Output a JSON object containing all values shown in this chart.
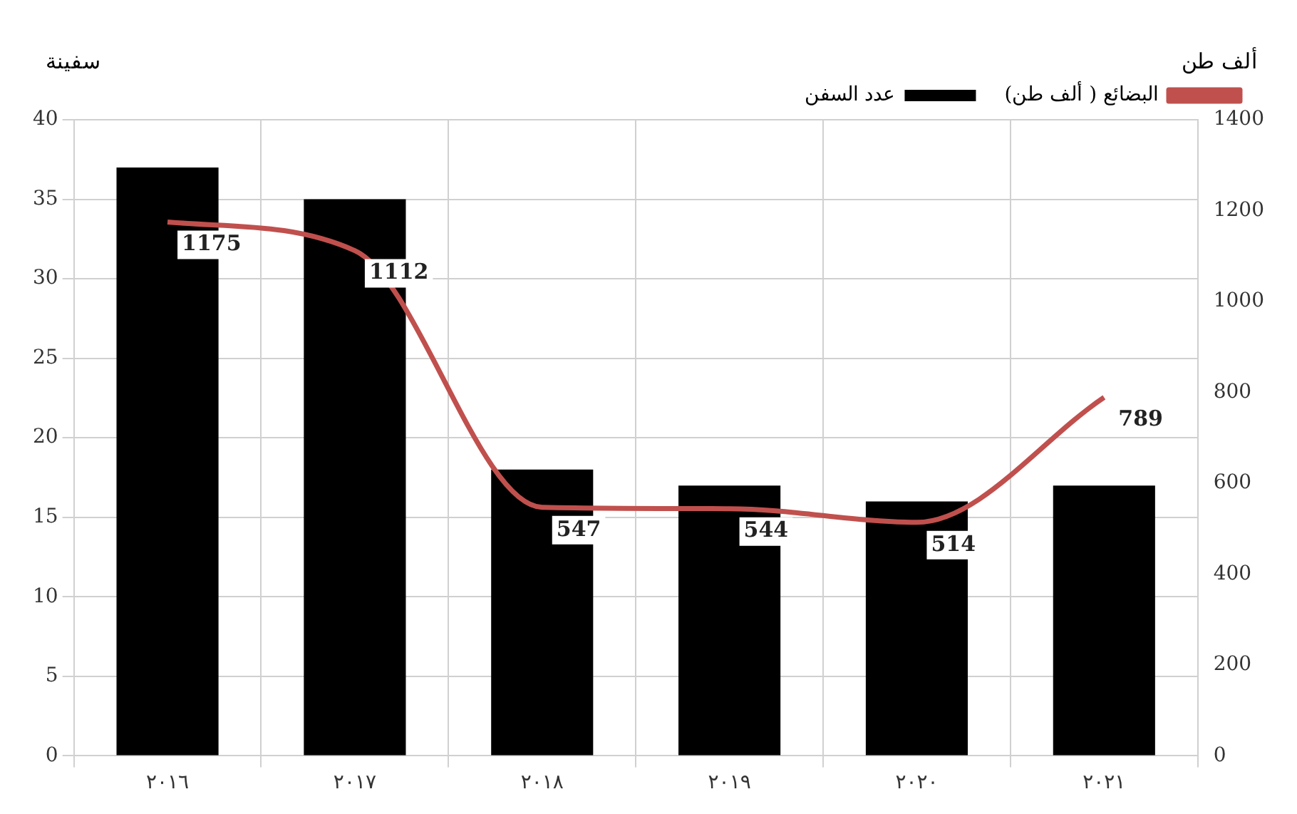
{
  "chart_data": {
    "type": "bar",
    "ylabel": "سفينة",
    "y2label": "ألف طن",
    "categories": [
      "٢٠١٦",
      "٢٠١٧",
      "٢٠١٨",
      "٢٠١٩",
      "٢٠٢٠",
      "٢٠٢١"
    ],
    "series": [
      {
        "name": "عدد السفن",
        "color": "#000000",
        "values": [
          37,
          35,
          18,
          17,
          16,
          17
        ]
      },
      {
        "name": "البضائع ( ألف طن)",
        "type": "line",
        "axis": "y2",
        "color": "#c0504d",
        "values": [
          1175,
          1112,
          547,
          544,
          514,
          789
        ],
        "data_labels": true
      }
    ],
    "ylim": [
      0,
      40
    ],
    "yticks": [
      0,
      5,
      10,
      15,
      20,
      25,
      30,
      35,
      40
    ],
    "y2lim": [
      0,
      1400
    ],
    "y2ticks": [
      0,
      200,
      400,
      600,
      800,
      1000,
      1200,
      1400
    ],
    "grid": true,
    "legend": "top right",
    "marker": "none"
  }
}
